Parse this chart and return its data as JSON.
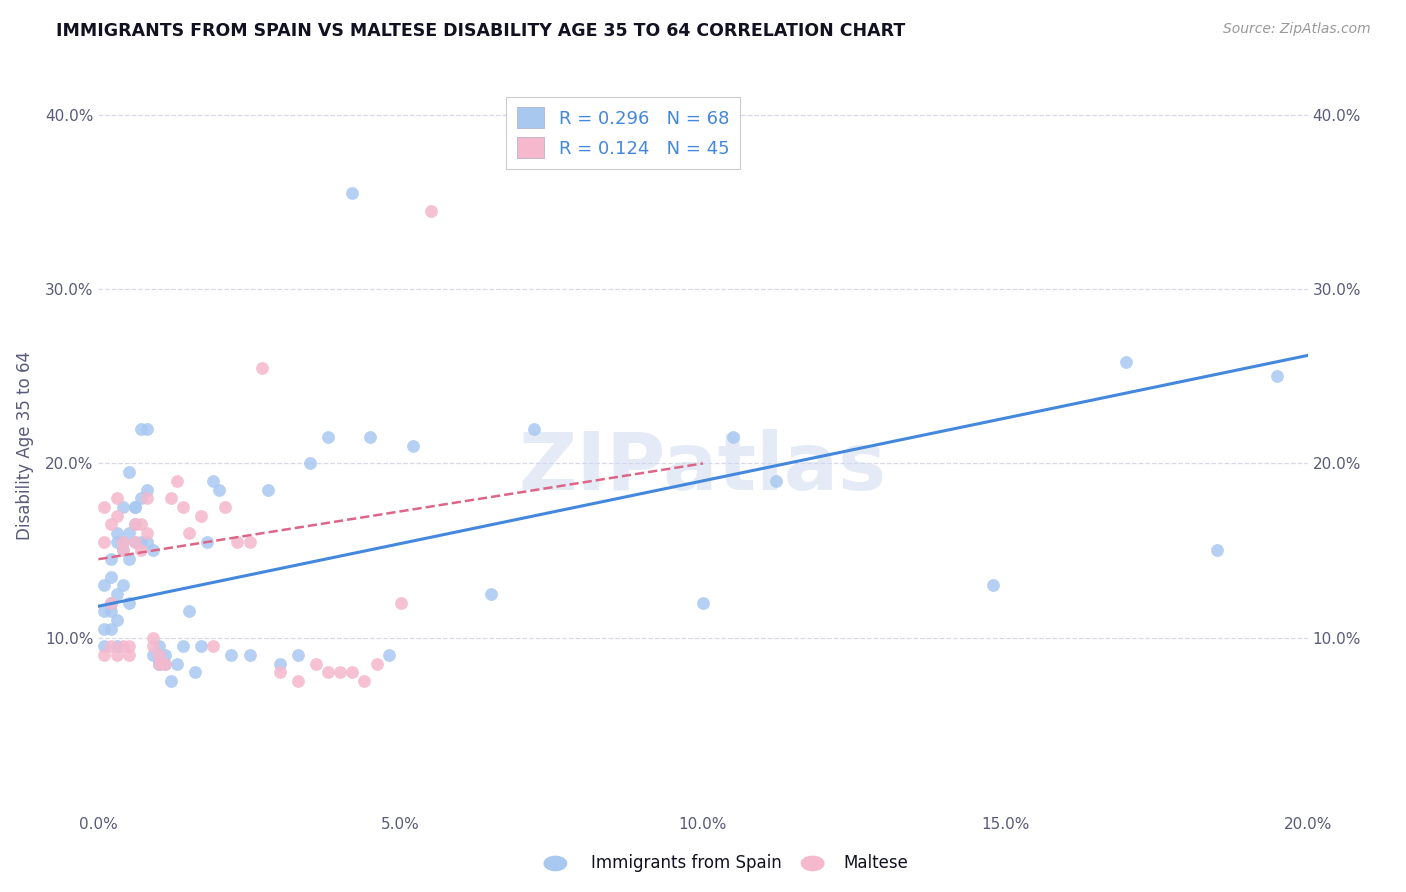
{
  "title": "IMMIGRANTS FROM SPAIN VS MALTESE DISABILITY AGE 35 TO 64 CORRELATION CHART",
  "source": "Source: ZipAtlas.com",
  "ylabel": "Disability Age 35 to 64",
  "legend_label_blue": "Immigrants from Spain",
  "legend_label_pink": "Maltese",
  "R_blue": 0.296,
  "N_blue": 68,
  "R_pink": 0.124,
  "N_pink": 45,
  "xlim": [
    0.0,
    0.2
  ],
  "ylim": [
    0.0,
    0.42
  ],
  "xticks": [
    0.0,
    0.05,
    0.1,
    0.15,
    0.2
  ],
  "xtick_labels": [
    "0.0%",
    "5.0%",
    "10.0%",
    "15.0%",
    "20.0%"
  ],
  "yticks": [
    0.1,
    0.2,
    0.3,
    0.4
  ],
  "ytick_labels": [
    "10.0%",
    "20.0%",
    "30.0%",
    "40.0%"
  ],
  "blue_color": "#a8c8f0",
  "pink_color": "#f5b8cc",
  "blue_line_color": "#4488dd",
  "pink_line_color": "#dd6688",
  "background_color": "#ffffff",
  "grid_color": "#d8d8e8",
  "watermark": "ZIPatlas",
  "blue_x": [
    0.001,
    0.001,
    0.001,
    0.001,
    0.002,
    0.002,
    0.002,
    0.002,
    0.002,
    0.003,
    0.003,
    0.003,
    0.003,
    0.003,
    0.004,
    0.004,
    0.004,
    0.004,
    0.005,
    0.005,
    0.005,
    0.005,
    0.006,
    0.006,
    0.006,
    0.006,
    0.007,
    0.007,
    0.007,
    0.008,
    0.008,
    0.008,
    0.009,
    0.009,
    0.01,
    0.01,
    0.01,
    0.011,
    0.011,
    0.012,
    0.013,
    0.014,
    0.015,
    0.016,
    0.017,
    0.018,
    0.019,
    0.02,
    0.022,
    0.025,
    0.028,
    0.03,
    0.033,
    0.035,
    0.038,
    0.042,
    0.045,
    0.048,
    0.052,
    0.065,
    0.072,
    0.1,
    0.105,
    0.112,
    0.148,
    0.17,
    0.185,
    0.195
  ],
  "blue_y": [
    0.115,
    0.13,
    0.105,
    0.095,
    0.12,
    0.135,
    0.145,
    0.105,
    0.115,
    0.125,
    0.155,
    0.16,
    0.095,
    0.11,
    0.155,
    0.175,
    0.13,
    0.15,
    0.145,
    0.12,
    0.16,
    0.195,
    0.175,
    0.155,
    0.175,
    0.165,
    0.155,
    0.18,
    0.22,
    0.155,
    0.185,
    0.22,
    0.15,
    0.09,
    0.085,
    0.085,
    0.095,
    0.09,
    0.085,
    0.075,
    0.085,
    0.095,
    0.115,
    0.08,
    0.095,
    0.155,
    0.19,
    0.185,
    0.09,
    0.09,
    0.185,
    0.085,
    0.09,
    0.2,
    0.215,
    0.355,
    0.215,
    0.09,
    0.21,
    0.125,
    0.22,
    0.12,
    0.215,
    0.19,
    0.13,
    0.258,
    0.15,
    0.25
  ],
  "pink_x": [
    0.001,
    0.001,
    0.001,
    0.002,
    0.002,
    0.002,
    0.003,
    0.003,
    0.003,
    0.004,
    0.004,
    0.004,
    0.005,
    0.005,
    0.006,
    0.006,
    0.007,
    0.007,
    0.008,
    0.008,
    0.009,
    0.009,
    0.01,
    0.01,
    0.011,
    0.012,
    0.013,
    0.014,
    0.015,
    0.017,
    0.019,
    0.021,
    0.023,
    0.025,
    0.027,
    0.03,
    0.033,
    0.036,
    0.038,
    0.04,
    0.042,
    0.044,
    0.046,
    0.05,
    0.055
  ],
  "pink_y": [
    0.175,
    0.155,
    0.09,
    0.12,
    0.165,
    0.095,
    0.17,
    0.18,
    0.09,
    0.15,
    0.155,
    0.095,
    0.095,
    0.09,
    0.155,
    0.165,
    0.15,
    0.165,
    0.18,
    0.16,
    0.1,
    0.095,
    0.09,
    0.085,
    0.085,
    0.18,
    0.19,
    0.175,
    0.16,
    0.17,
    0.095,
    0.175,
    0.155,
    0.155,
    0.255,
    0.08,
    0.075,
    0.085,
    0.08,
    0.08,
    0.08,
    0.075,
    0.085,
    0.12,
    0.345
  ],
  "blue_line_x": [
    0.0,
    0.2
  ],
  "blue_line_y": [
    0.118,
    0.262
  ],
  "pink_line_x": [
    0.0,
    0.1
  ],
  "pink_line_y": [
    0.145,
    0.2
  ]
}
